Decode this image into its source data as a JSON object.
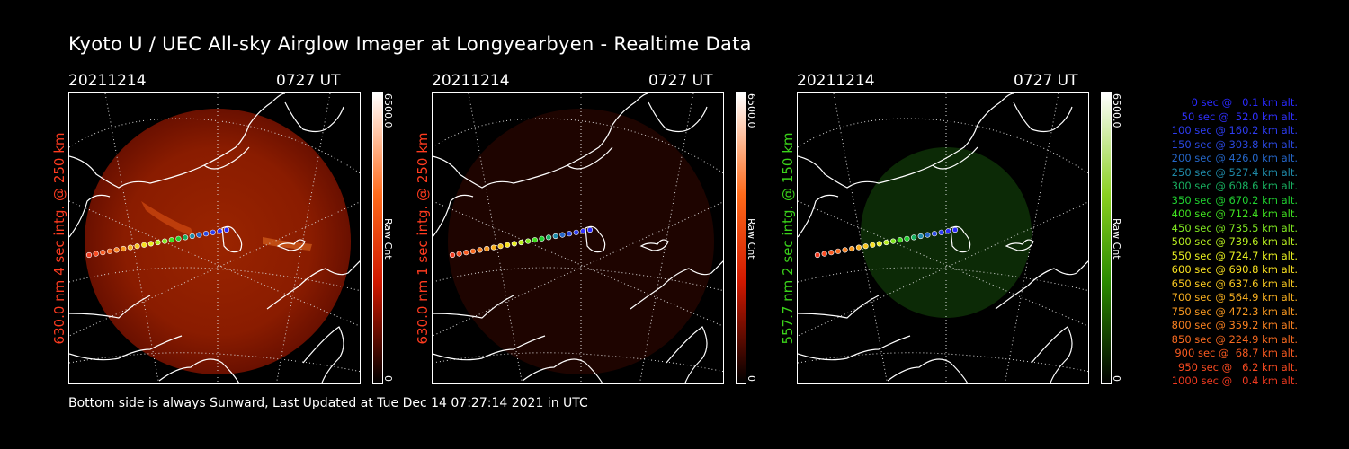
{
  "title": "Kyoto U / UEC All-sky Airglow Imager at Longyearbyen - Realtime Data",
  "panels": [
    {
      "date": "20211214",
      "time": "0727 UT",
      "ylabel": "630.0 nm 4 sec intg. @ 250 km",
      "label_color": "#ff3b1f",
      "scale_max": "6500.0",
      "scale_min": "0",
      "unit": "Raw Cnt",
      "cbar_top": "#ffffff",
      "cbar_mid": "#ff6a1a",
      "cbar_low": "#d01800"
    },
    {
      "date": "20211214",
      "time": "0727 UT",
      "ylabel": "630.0 nm 1 sec intg. @ 250 km",
      "label_color": "#ff3b1f",
      "scale_max": "6500.0",
      "scale_min": "0",
      "unit": "Raw Cnt",
      "cbar_top": "#ffffff",
      "cbar_mid": "#ff6a1a",
      "cbar_low": "#d01800"
    },
    {
      "date": "20211214",
      "time": "0727 UT",
      "ylabel": "557.7 nm 2 sec intg. @ 150 km",
      "label_color": "#3ad21a",
      "scale_max": "6500.0",
      "scale_min": "0",
      "unit": "Raw Cnt",
      "cbar_top": "#ffffff",
      "cbar_mid": "#8ad020",
      "cbar_low": "#2a8a00"
    }
  ],
  "legend": [
    {
      "text": "   0 sec @   0.1 km alt.",
      "color": "#2a2aff"
    },
    {
      "text": "  50 sec @  52.0 km alt.",
      "color": "#3030ff"
    },
    {
      "text": " 100 sec @ 160.2 km alt.",
      "color": "#2d3cf0"
    },
    {
      "text": " 150 sec @ 303.8 km alt.",
      "color": "#2a48e0"
    },
    {
      "text": " 200 sec @ 426.0 km alt.",
      "color": "#2566c8"
    },
    {
      "text": " 250 sec @ 527.4 km alt.",
      "color": "#1f8aa8"
    },
    {
      "text": " 300 sec @ 608.6 km alt.",
      "color": "#18b060"
    },
    {
      "text": " 350 sec @ 670.2 km alt.",
      "color": "#20d030"
    },
    {
      "text": " 400 sec @ 712.4 km alt.",
      "color": "#40e020"
    },
    {
      "text": " 450 sec @ 735.5 km alt.",
      "color": "#80e820"
    },
    {
      "text": " 500 sec @ 739.6 km alt.",
      "color": "#b8ee20"
    },
    {
      "text": " 550 sec @ 724.7 km alt.",
      "color": "#e8f020"
    },
    {
      "text": " 600 sec @ 690.8 km alt.",
      "color": "#f8e020"
    },
    {
      "text": " 650 sec @ 637.6 km alt.",
      "color": "#f8c820"
    },
    {
      "text": " 700 sec @ 564.9 km alt.",
      "color": "#f8b020"
    },
    {
      "text": " 750 sec @ 472.3 km alt.",
      "color": "#f89820"
    },
    {
      "text": " 800 sec @ 359.2 km alt.",
      "color": "#f88020"
    },
    {
      "text": " 850 sec @ 224.9 km alt.",
      "color": "#f86a20"
    },
    {
      "text": " 900 sec @  68.7 km alt.",
      "color": "#f85a20"
    },
    {
      "text": " 950 sec @   6.2 km alt.",
      "color": "#f84a20"
    },
    {
      "text": "1000 sec @   0.4 km alt.",
      "color": "#f03a20"
    }
  ],
  "footer": "Bottom side is always Sunward, Last Updated at Tue Dec 14 07:27:14 2021 in UTC"
}
